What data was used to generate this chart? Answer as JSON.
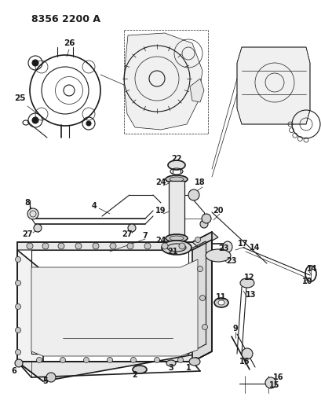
{
  "title": "8356 2200 A",
  "bg_color": "#ffffff",
  "line_color": "#000000",
  "figsize": [
    4.1,
    5.33
  ],
  "dpi": 100
}
